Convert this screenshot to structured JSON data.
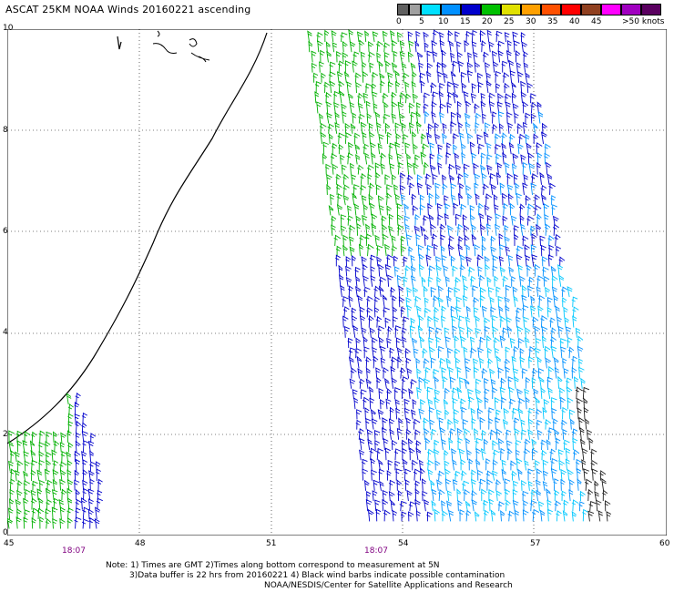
{
  "title": "ASCAT 25KM NOAA Winds 20160221 ascending",
  "legend": {
    "colors": [
      "#606060",
      "#a0a0a0",
      "#00e0ff",
      "#0090ff",
      "#0000cc",
      "#00c000",
      "#e0e000",
      "#ffa000",
      "#ff5000",
      "#ff0000",
      "#904020",
      "#ff00ff",
      "#a000c0",
      "#5a0060"
    ],
    "labels": [
      "0",
      "5",
      "10",
      "15",
      "20",
      "25",
      "30",
      "35",
      "40",
      "45",
      ">50 knots"
    ]
  },
  "map": {
    "x_ticks": [
      "45",
      "48",
      "51",
      "54",
      "57",
      "60"
    ],
    "y_ticks": [
      "0",
      "2",
      "4",
      "6",
      "8",
      "10"
    ],
    "x_range": [
      45,
      60
    ],
    "y_range": [
      0,
      10
    ],
    "grid": "dotted",
    "pass_times": [
      "18:07",
      "18:07"
    ]
  },
  "notes": [
    "Note: 1) Times are GMT 2)Times along bottom correspond to measurement at 5N",
    "3)Data buffer is 22 hrs from 20160221 4) Black wind barbs indicate possible contamination",
    "NOAA/NESDIS/Center for Satellite Applications and Research"
  ]
}
